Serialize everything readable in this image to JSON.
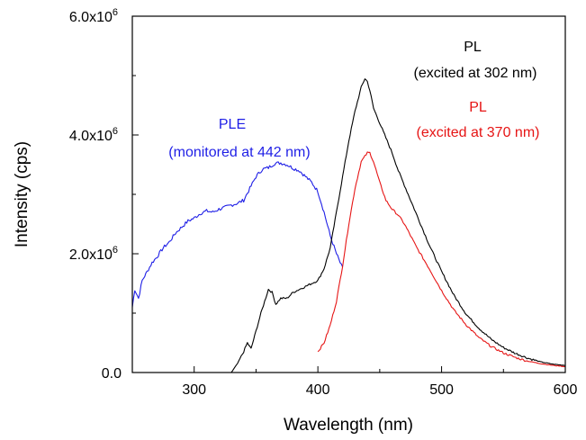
{
  "chart_data": {
    "type": "line",
    "xlabel": "Wavelength (nm)",
    "ylabel": "Intensity (cps)",
    "xlim": [
      250,
      600
    ],
    "ylim": [
      0,
      6000000
    ],
    "x_ticks": [
      {
        "value": 300,
        "label": "300"
      },
      {
        "value": 400,
        "label": "400"
      },
      {
        "value": 500,
        "label": "500"
      },
      {
        "value": 600,
        "label": "600"
      }
    ],
    "y_ticks": [
      {
        "value": 0,
        "label": "0.0"
      },
      {
        "value": 2000000,
        "mantissa": "2.0x10",
        "exponent": "6"
      },
      {
        "value": 4000000,
        "mantissa": "4.0x10",
        "exponent": "6"
      },
      {
        "value": 6000000,
        "mantissa": "6.0x10",
        "exponent": "6"
      }
    ],
    "series": [
      {
        "key": "ple",
        "color": "#1f1fe6",
        "x": [
          250,
          252,
          255,
          258,
          262,
          266,
          270,
          275,
          280,
          285,
          290,
          295,
          300,
          305,
          310,
          315,
          320,
          325,
          330,
          335,
          340,
          345,
          350,
          355,
          360,
          365,
          370,
          375,
          380,
          385,
          390,
          395,
          400,
          405,
          410,
          415,
          420
        ],
        "y": [
          1100000,
          1400000,
          1250000,
          1550000,
          1700000,
          1850000,
          1950000,
          2100000,
          2200000,
          2350000,
          2450000,
          2550000,
          2600000,
          2680000,
          2720000,
          2700000,
          2750000,
          2780000,
          2820000,
          2850000,
          2900000,
          3100000,
          3300000,
          3420000,
          3450000,
          3520000,
          3530000,
          3500000,
          3440000,
          3400000,
          3300000,
          3200000,
          3050000,
          2700000,
          2300000,
          2000000,
          1750000
        ]
      },
      {
        "key": "pl302",
        "color": "#000000",
        "x": [
          330,
          335,
          340,
          343,
          346,
          350,
          354,
          357,
          360,
          363,
          366,
          370,
          375,
          380,
          385,
          390,
          395,
          400,
          405,
          410,
          415,
          420,
          425,
          430,
          435,
          438,
          440,
          442,
          445,
          450,
          455,
          460,
          465,
          470,
          475,
          480,
          490,
          500,
          510,
          520,
          530,
          540,
          550,
          560,
          570,
          580,
          590,
          600
        ],
        "y": [
          0,
          150000,
          350000,
          500000,
          400000,
          700000,
          1000000,
          1200000,
          1400000,
          1350000,
          1150000,
          1250000,
          1250000,
          1350000,
          1400000,
          1450000,
          1500000,
          1550000,
          1750000,
          2100000,
          2700000,
          3300000,
          3900000,
          4400000,
          4800000,
          4950000,
          4900000,
          4750000,
          4450000,
          4200000,
          3950000,
          3700000,
          3400000,
          3150000,
          2900000,
          2650000,
          2150000,
          1700000,
          1300000,
          980000,
          750000,
          560000,
          420000,
          320000,
          240000,
          180000,
          140000,
          120000
        ]
      },
      {
        "key": "pl370",
        "color": "#e61515",
        "x": [
          400,
          405,
          410,
          415,
          420,
          425,
          430,
          435,
          440,
          442,
          445,
          450,
          455,
          460,
          465,
          470,
          475,
          480,
          490,
          500,
          510,
          520,
          530,
          540,
          550,
          560,
          570,
          580,
          590,
          600
        ],
        "y": [
          350000,
          500000,
          800000,
          1200000,
          1800000,
          2500000,
          3100000,
          3550000,
          3700000,
          3700000,
          3550000,
          3200000,
          2900000,
          2750000,
          2650000,
          2500000,
          2300000,
          2100000,
          1750000,
          1380000,
          1050000,
          800000,
          590000,
          440000,
          330000,
          250000,
          190000,
          150000,
          120000,
          100000
        ]
      }
    ],
    "annotations": [
      {
        "key": "ple_title",
        "text": "PLE",
        "color": "#1f1fe6"
      },
      {
        "key": "ple_sub",
        "text": "(monitored at 442 nm)",
        "color": "#1f1fe6"
      },
      {
        "key": "pl302_title",
        "text": "PL",
        "color": "#000000"
      },
      {
        "key": "pl302_sub",
        "text": "(excited at 302 nm)",
        "color": "#000000"
      },
      {
        "key": "pl370_title",
        "text": "PL",
        "color": "#e61515"
      },
      {
        "key": "pl370_sub",
        "text": "(excited at 370 nm)",
        "color": "#e61515"
      }
    ]
  }
}
